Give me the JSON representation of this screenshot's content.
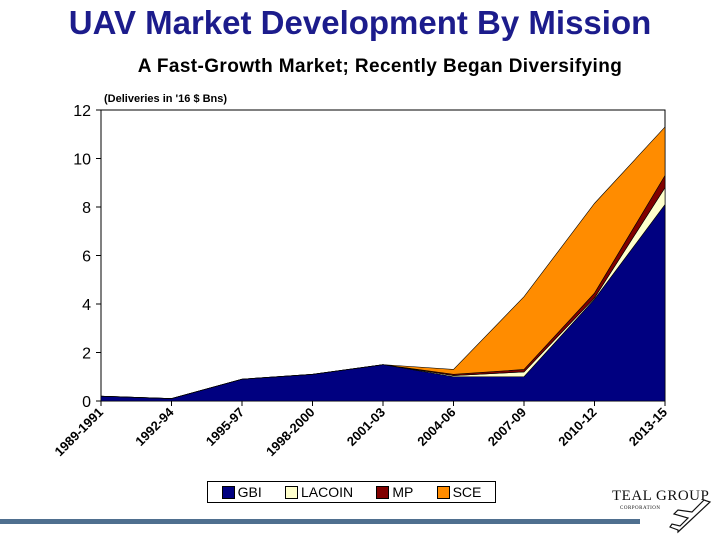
{
  "header": {
    "title": "UAV Market Development By Mission",
    "subtitle": "A Fast-Growth Market; Recently Began Diversifying"
  },
  "logo": {
    "name": "TEAL GROUP",
    "sub": "CORPORATION"
  },
  "colors": {
    "title": "#1c1c8c",
    "GBI": "#000080",
    "LACOIN": "#ffffcc",
    "MP": "#800000",
    "SCE": "#ff8c00",
    "bar": "#4f6f8f"
  },
  "chart_data": {
    "type": "area",
    "stacked": true,
    "units_note": "(Deliveries in '16 $ Bns)",
    "categories": [
      "1989-1991",
      "1992-94",
      "1995-97",
      "1998-2000",
      "2001-03",
      "2004-06",
      "2007-09",
      "2010-12",
      "2013-15"
    ],
    "ylim": [
      0,
      12
    ],
    "yticks": [
      0,
      2,
      4,
      6,
      8,
      10,
      12
    ],
    "legend_position": "bottom",
    "series": [
      {
        "name": "GBI",
        "values": [
          0.2,
          0.1,
          0.9,
          1.1,
          1.5,
          1.0,
          1.0,
          4.2,
          8.1
        ]
      },
      {
        "name": "LACOIN",
        "values": [
          0.0,
          0.0,
          0.0,
          0.0,
          0.0,
          0.05,
          0.2,
          0.05,
          0.7
        ]
      },
      {
        "name": "MP",
        "values": [
          0.0,
          0.0,
          0.0,
          0.0,
          0.0,
          0.05,
          0.1,
          0.2,
          0.5
        ]
      },
      {
        "name": "SCE",
        "values": [
          0.0,
          0.0,
          0.0,
          0.0,
          0.0,
          0.2,
          3.0,
          3.7,
          2.0
        ]
      }
    ]
  }
}
